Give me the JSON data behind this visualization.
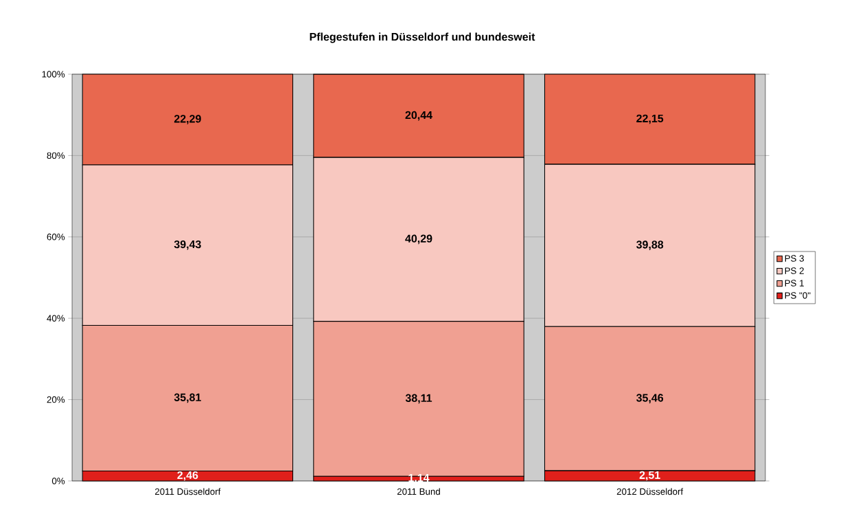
{
  "chart_data": {
    "type": "bar",
    "title": "Pflegestufen in Düsseldorf und bundesweit",
    "categories": [
      "2011 Düsseldorf",
      "2011 Bund",
      "2012 Düsseldorf"
    ],
    "stacked": true,
    "series": [
      {
        "name": "PS \"0\"",
        "color": "#e0201b",
        "values": [
          2.46,
          1.14,
          2.51
        ],
        "value_labels": [
          "2,46",
          "1,14",
          "2,51"
        ]
      },
      {
        "name": "PS 1",
        "color": "#f0a092",
        "values": [
          35.81,
          38.11,
          35.46
        ],
        "value_labels": [
          "35,81",
          "38,11",
          "35,46"
        ]
      },
      {
        "name": "PS 2",
        "color": "#f8c8c0",
        "values": [
          39.43,
          40.29,
          39.88
        ],
        "value_labels": [
          "39,43",
          "40,29",
          "39,88"
        ]
      },
      {
        "name": "PS 3",
        "color": "#e8684f",
        "values": [
          22.29,
          20.44,
          22.15
        ],
        "value_labels": [
          "22,29",
          "20,44",
          "22,15"
        ]
      }
    ],
    "ylim": [
      0,
      100
    ],
    "yticks": [
      {
        "value": 0,
        "label": "0%"
      },
      {
        "value": 20,
        "label": "20%"
      },
      {
        "value": 40,
        "label": "40%"
      },
      {
        "value": 60,
        "label": "60%"
      },
      {
        "value": 80,
        "label": "80%"
      },
      {
        "value": 100,
        "label": "100%"
      }
    ],
    "grid": "y",
    "legend": "right"
  }
}
